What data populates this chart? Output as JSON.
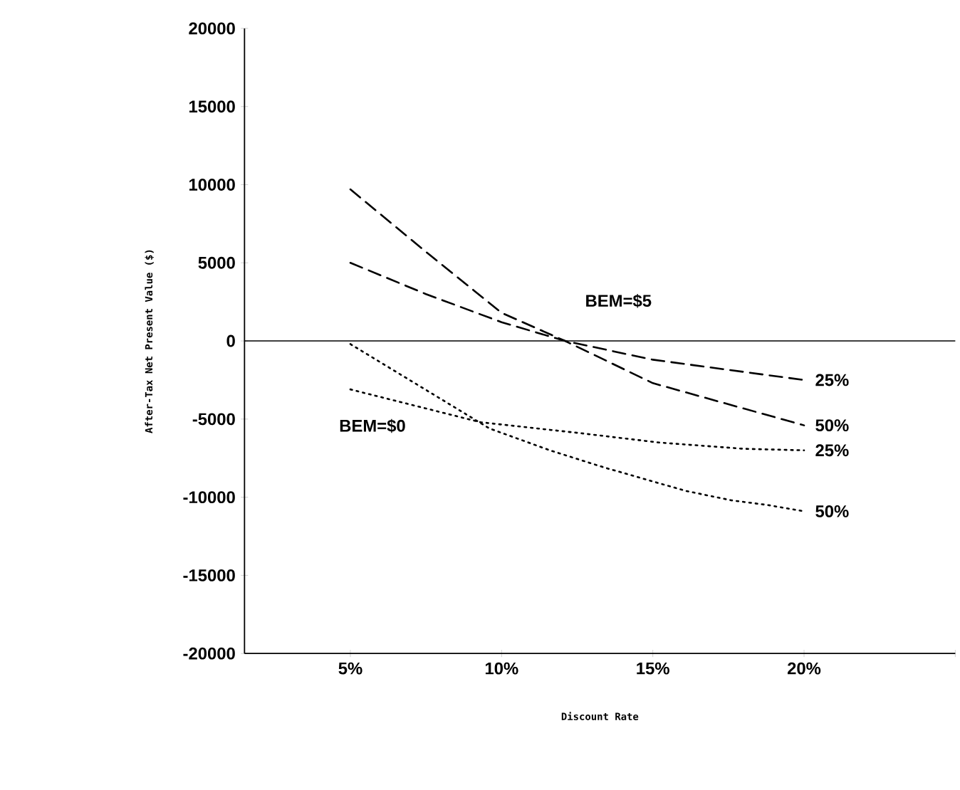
{
  "chart_data": {
    "type": "line",
    "xlabel": "Discount Rate",
    "ylabel": "After-Tax Net Present Value ($)",
    "xlim": [
      1.5,
      25
    ],
    "ylim": [
      -20000,
      20000
    ],
    "xticks": [
      {
        "value": 5,
        "label": "5%"
      },
      {
        "value": 10,
        "label": "10%"
      },
      {
        "value": 15,
        "label": "15%"
      },
      {
        "value": 20,
        "label": "20%"
      },
      {
        "value": 25,
        "label": null
      }
    ],
    "yticks": [
      -20000,
      -15000,
      -10000,
      -5000,
      0,
      5000,
      10000,
      15000,
      20000
    ],
    "series": [
      {
        "name": "25%",
        "color": "#000000",
        "line_style": "dashed",
        "x": [
          5,
          7.5,
          10,
          12.1,
          15,
          20
        ],
        "values": [
          5000,
          3000,
          1200,
          0,
          -1200,
          -2500
        ]
      },
      {
        "name": "50%",
        "color": "#000000",
        "line_style": "dashed",
        "x": [
          5,
          7.5,
          10,
          12.1,
          15,
          20
        ],
        "values": [
          9700,
          5700,
          1800,
          0,
          -2700,
          -5400
        ]
      },
      {
        "name": "25%",
        "color": "#000000",
        "line_style": "dotted",
        "x": [
          5,
          9.3,
          12.6,
          15.2,
          18,
          20
        ],
        "values": [
          -3100,
          -5200,
          -5900,
          -6500,
          -6900,
          -7000
        ]
      },
      {
        "name": "50%",
        "color": "#000000",
        "line_style": "dotted",
        "x": [
          5,
          9.6,
          11.6,
          13.4,
          16.1,
          17.6,
          18.8,
          20
        ],
        "values": [
          -200,
          -5600,
          -7000,
          -8100,
          -9600,
          -10200,
          -10500,
          -10900
        ]
      }
    ],
    "annotations": [
      "BEM=$5",
      "BEM=$0"
    ],
    "ref_lines": [
      {
        "axis": "y",
        "value": 0
      }
    ]
  }
}
